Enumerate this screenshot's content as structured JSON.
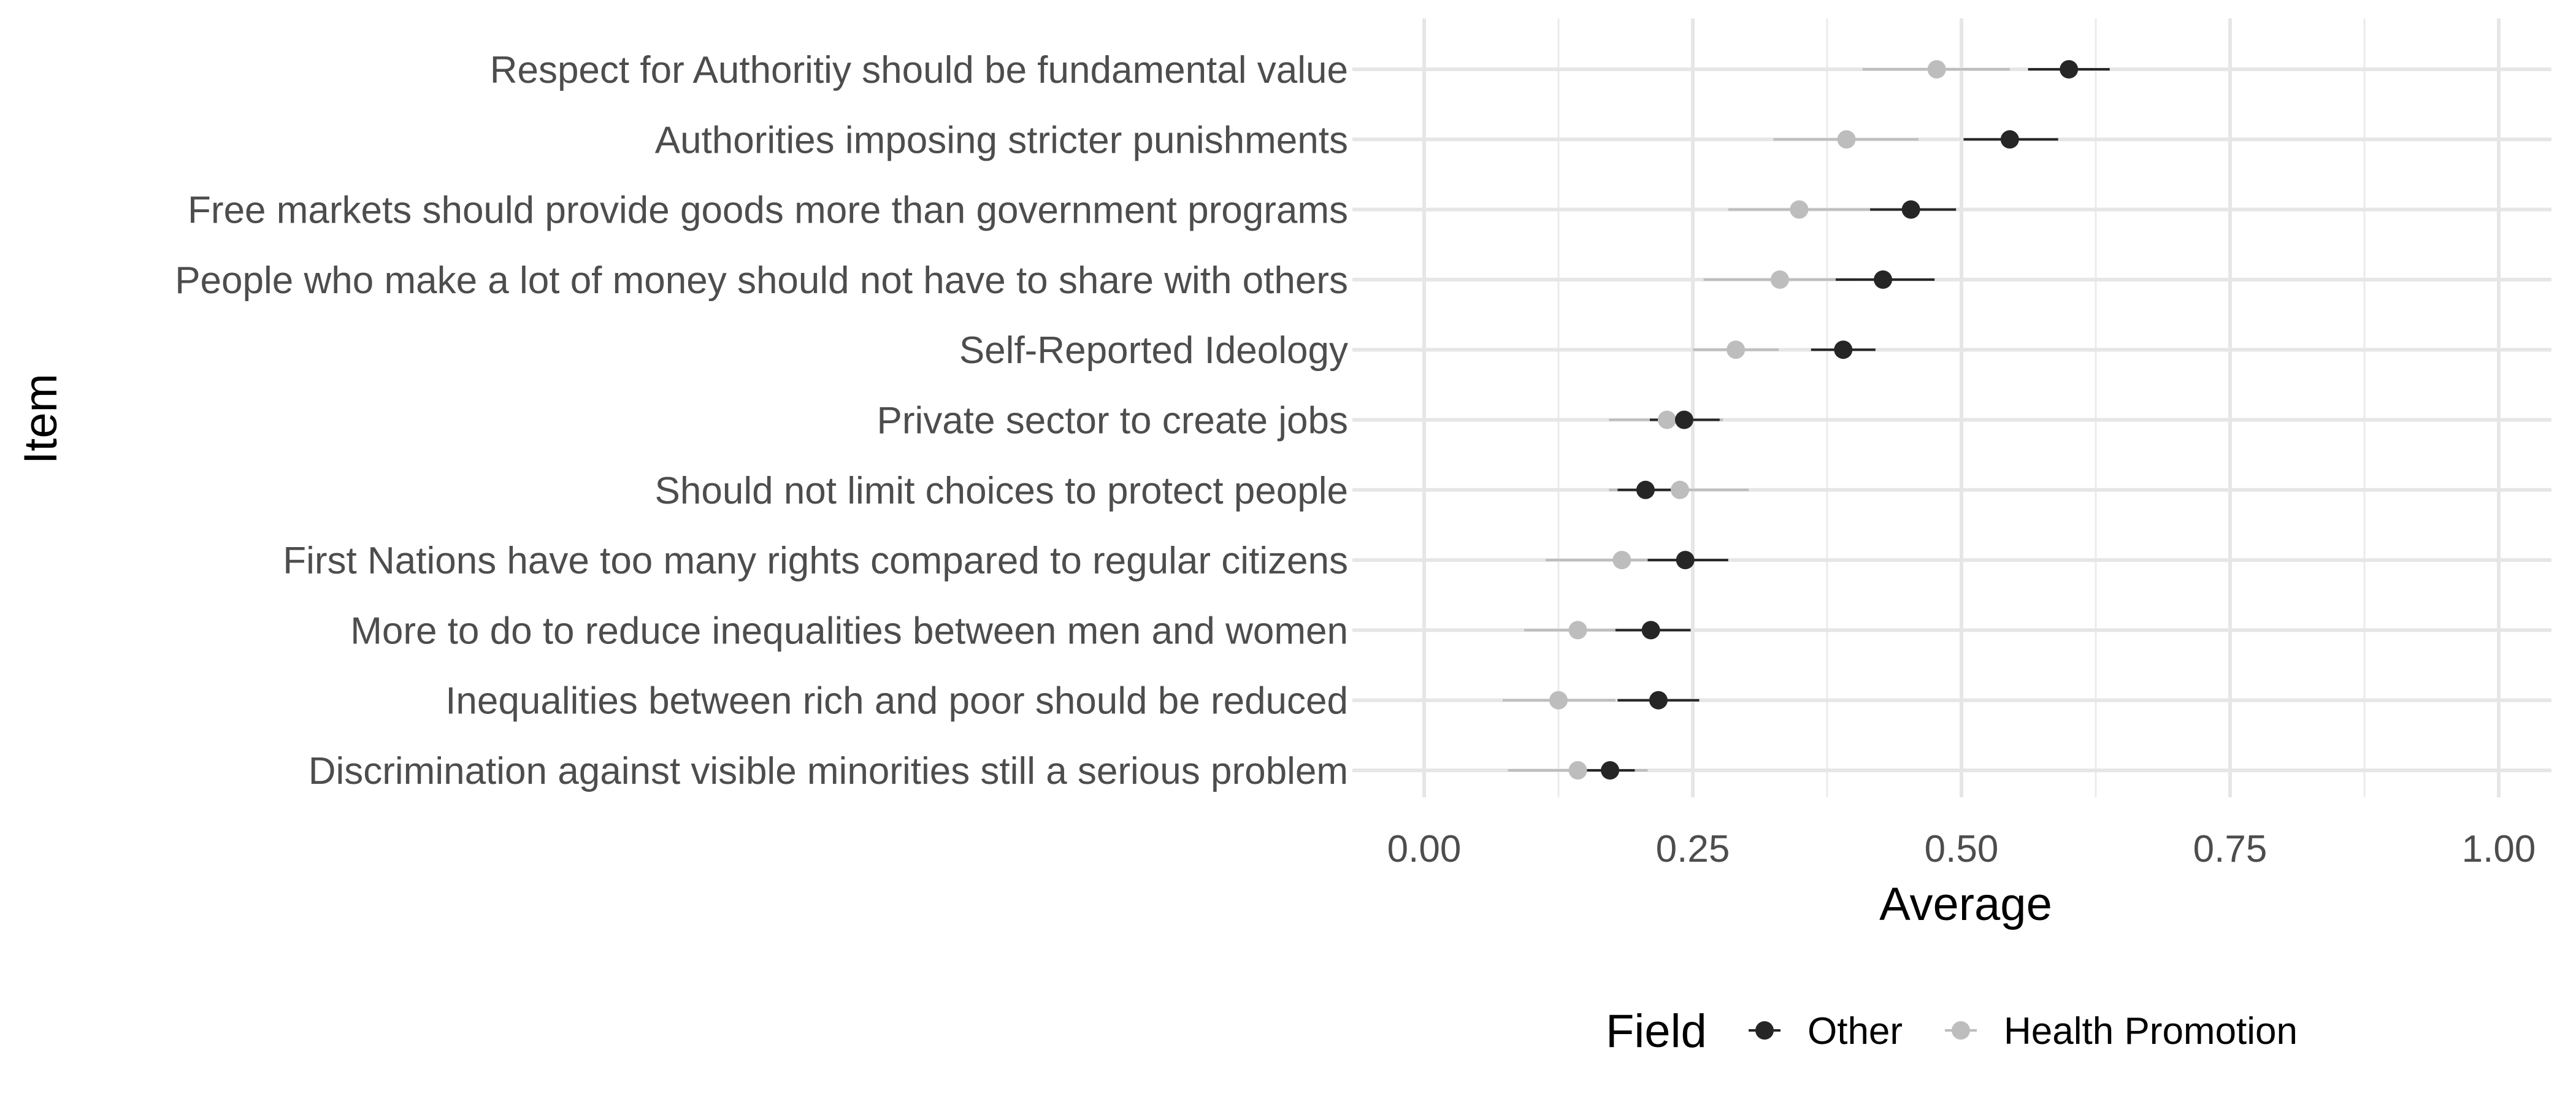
{
  "chart_data": {
    "type": "scatter",
    "subtype": "dot-and-whisker",
    "xlabel": "Average",
    "ylabel": "Item",
    "xlim": [
      0,
      1
    ],
    "x_ticks": [
      "0.00",
      "0.25",
      "0.50",
      "0.75",
      "1.00"
    ],
    "x_tick_values": [
      0,
      0.25,
      0.5,
      0.75,
      1.0
    ],
    "grid": true,
    "legend": {
      "title": "Field",
      "position": "bottom"
    },
    "categories": [
      "Respect for Authoritiy should be fundamental value",
      "Authorities imposing stricter punishments",
      "Free markets should provide goods more than government programs",
      "People who make a lot of money should not have to share with others",
      "Self-Reported Ideology",
      "Private sector to create jobs",
      "Should not limit choices to protect people",
      "First Nations have too many rights compared to regular citizens",
      "More to do to reduce inequalities between men and women",
      "Inequalities between rich and poor should be reduced",
      "Discrimination against visible minorities still a serious problem"
    ],
    "series": [
      {
        "name": "Other",
        "color": "#262626",
        "values": [
          0.6,
          0.545,
          0.453,
          0.427,
          0.39,
          0.242,
          0.206,
          0.243,
          0.211,
          0.218,
          0.173
        ],
        "lower": [
          0.562,
          0.502,
          0.415,
          0.383,
          0.36,
          0.21,
          0.18,
          0.208,
          0.178,
          0.18,
          0.15
        ],
        "upper": [
          0.638,
          0.59,
          0.495,
          0.475,
          0.42,
          0.275,
          0.235,
          0.283,
          0.248,
          0.256,
          0.196
        ]
      },
      {
        "name": "Health Promotion",
        "color": "#bdbdbd",
        "values": [
          0.477,
          0.393,
          0.349,
          0.331,
          0.29,
          0.226,
          0.238,
          0.184,
          0.143,
          0.125,
          0.143
        ],
        "lower": [
          0.408,
          0.325,
          0.283,
          0.26,
          0.25,
          0.172,
          0.172,
          0.113,
          0.093,
          0.073,
          0.078
        ],
        "upper": [
          0.545,
          0.46,
          0.415,
          0.4,
          0.33,
          0.278,
          0.302,
          0.255,
          0.195,
          0.178,
          0.208
        ]
      }
    ]
  }
}
